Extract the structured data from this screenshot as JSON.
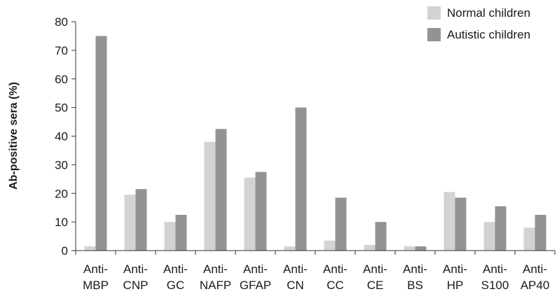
{
  "chart_data": {
    "type": "bar",
    "title": "",
    "xlabel": "",
    "ylabel": "Ab-positive sera (%)",
    "ylim": [
      0,
      80
    ],
    "yticks": [
      0,
      10,
      20,
      30,
      40,
      50,
      60,
      70,
      80
    ],
    "categories": [
      [
        "Anti-",
        "MBP"
      ],
      [
        "Anti-",
        "CNP"
      ],
      [
        "Anti-",
        "GC"
      ],
      [
        "Anti-",
        "NAFP"
      ],
      [
        "Anti-",
        "GFAP"
      ],
      [
        "Anti-",
        "CN"
      ],
      [
        "Anti-",
        "CC"
      ],
      [
        "Anti-",
        "CE"
      ],
      [
        "Anti-",
        "BS"
      ],
      [
        "Anti-",
        "HP"
      ],
      [
        "Anti-",
        "S100"
      ],
      [
        "Anti-",
        "AP40"
      ]
    ],
    "series": [
      {
        "name": "Normal children",
        "color": "#d3d3d3",
        "values": [
          1.5,
          19.5,
          10,
          38,
          25.5,
          1.5,
          3.5,
          2,
          1.5,
          20.5,
          10,
          8
        ]
      },
      {
        "name": "Autistic children",
        "color": "#939393",
        "values": [
          75,
          21.5,
          12.5,
          42.5,
          27.5,
          50,
          18.5,
          10,
          1.5,
          18.5,
          15.5,
          12.5
        ]
      }
    ],
    "legend_position": "top-right",
    "grid": false
  }
}
